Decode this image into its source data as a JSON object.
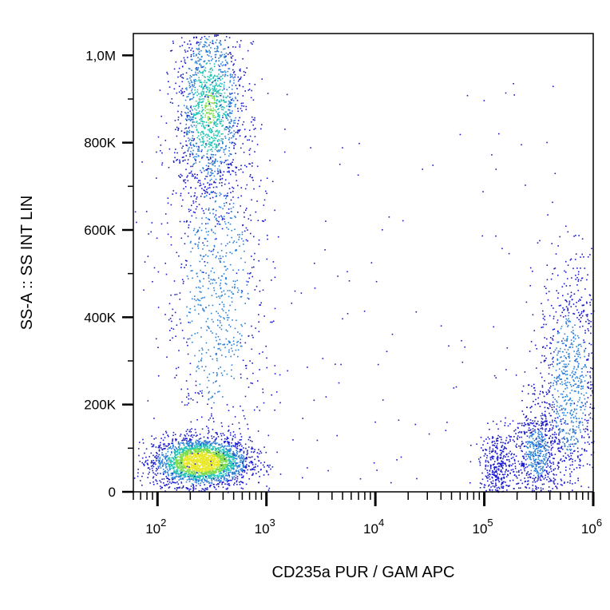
{
  "chart_data": {
    "type": "scatter",
    "subtype": "flow-cytometry density dot plot",
    "xlabel": "CD235a PUR / GAM APC",
    "ylabel": "SS-A :: SS INT LIN",
    "x_scale": "log",
    "xlim": [
      60,
      1000000
    ],
    "ylim": [
      0,
      1050000
    ],
    "x_ticks": [
      {
        "value": 100,
        "base": "10",
        "exp": "2"
      },
      {
        "value": 1000,
        "base": "10",
        "exp": "3"
      },
      {
        "value": 10000,
        "base": "10",
        "exp": "4"
      },
      {
        "value": 100000,
        "base": "10",
        "exp": "5"
      },
      {
        "value": 1000000,
        "base": "10",
        "exp": "6"
      }
    ],
    "y_ticks": [
      {
        "value": 0,
        "label": "0"
      },
      {
        "value": 200000,
        "label": "200K"
      },
      {
        "value": 400000,
        "label": "400K"
      },
      {
        "value": 600000,
        "label": "600K"
      },
      {
        "value": 800000,
        "label": "800K"
      },
      {
        "value": 1000000,
        "label": "1,0M"
      }
    ],
    "grid": false,
    "colormap": [
      "#1a1acc",
      "#2a7fd6",
      "#22c2b4",
      "#7fdc4a",
      "#e8e82a"
    ],
    "populations": [
      {
        "x_center": 250,
        "x_spread_decades": 0.22,
        "y_center": 70000,
        "y_spread": 28000,
        "count": 2600
      },
      {
        "x_center": 300,
        "x_spread_decades": 0.16,
        "y_center": 880000,
        "y_spread": 110000,
        "count": 1500
      },
      {
        "x_center": 350,
        "x_spread_decades": 0.25,
        "y_center": 450000,
        "y_spread": 220000,
        "count": 900
      },
      {
        "x_center": 130000,
        "x_spread_decades": 0.08,
        "y_center": 60000,
        "y_spread": 40000,
        "count": 350
      },
      {
        "x_center": 300000,
        "x_spread_decades": 0.12,
        "y_center": 90000,
        "y_spread": 60000,
        "count": 700
      },
      {
        "x_center": 600000,
        "x_spread_decades": 0.14,
        "y_center": 250000,
        "y_spread": 140000,
        "count": 900
      }
    ]
  }
}
